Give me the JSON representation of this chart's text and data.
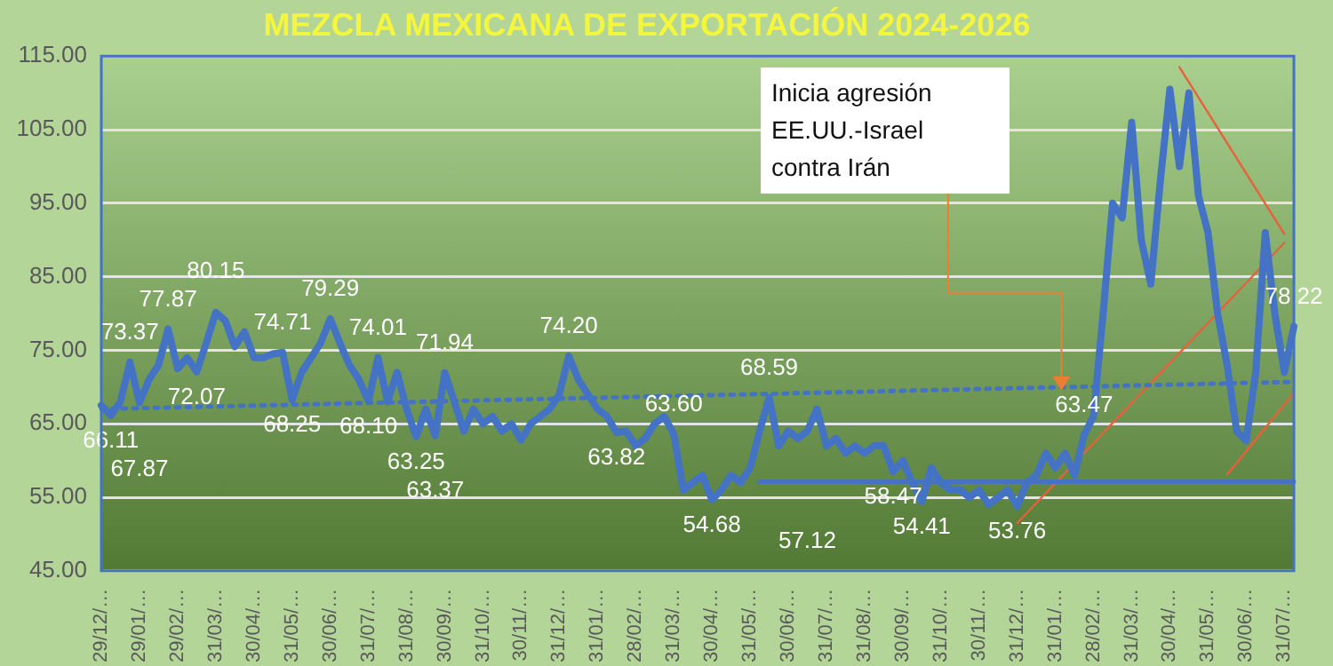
{
  "chart_data": {
    "type": "line",
    "title": "MEZCLA MEXICANA DE EXPORTACIÓN 2024-2026",
    "categories": [
      "29/12/…",
      null,
      null,
      null,
      "29/01/…",
      null,
      null,
      null,
      "29/02/…",
      null,
      null,
      null,
      "31/03/…",
      null,
      null,
      null,
      "30/04/…",
      null,
      null,
      null,
      "31/05/…",
      null,
      null,
      null,
      "30/06/…",
      null,
      null,
      null,
      "31/07/…",
      null,
      null,
      null,
      "31/08/…",
      null,
      null,
      null,
      "30/09/…",
      null,
      null,
      null,
      "31/10/…",
      null,
      null,
      null,
      "30/11/…",
      null,
      null,
      null,
      "31/12/…",
      null,
      null,
      null,
      "31/01/…",
      null,
      null,
      null,
      "28/02/…",
      null,
      null,
      null,
      "31/03/…",
      null,
      null,
      null,
      "30/04/…",
      null,
      null,
      null,
      "31/05/…",
      null,
      null,
      null,
      "30/06/…",
      null,
      null,
      null,
      "31/07/…",
      null,
      null,
      null,
      "31/08/…",
      null,
      null,
      null,
      "30/09/…",
      null,
      null,
      null,
      "31/10/…",
      null,
      null,
      null,
      "30/11/…",
      null,
      null,
      null,
      "31/12/…",
      null,
      null,
      null,
      "31/01/…",
      null,
      null,
      null,
      "28/02/…",
      null,
      null,
      null,
      "31/03/…",
      null,
      null,
      null,
      "30/04/…",
      null,
      null,
      null,
      "31/05/…",
      null,
      null,
      null,
      "30/06/…",
      null,
      null,
      null,
      "31/07/…",
      null
    ],
    "series": [
      {
        "color": "#4472c4",
        "values": [
          67.5,
          66.11,
          68,
          73.37,
          67.87,
          71,
          73,
          77.87,
          72.5,
          74,
          72.07,
          76,
          80.15,
          79,
          75.5,
          77.5,
          74,
          74,
          74.5,
          74.71,
          68.25,
          72,
          74,
          76,
          79.29,
          76,
          73,
          71,
          68.1,
          74.01,
          68,
          72,
          67,
          63.25,
          67,
          63.37,
          71.94,
          68,
          64,
          67,
          65,
          66,
          64,
          65,
          62.8,
          65,
          66,
          67,
          69,
          74.2,
          71,
          69,
          67,
          66,
          63.82,
          64,
          62,
          63,
          65,
          66,
          63.6,
          56,
          57,
          58,
          54.68,
          56,
          58,
          57,
          59,
          64,
          68.59,
          62,
          64,
          63,
          64,
          67,
          62,
          63,
          61,
          62,
          61,
          62,
          62,
          58.47,
          60,
          57,
          54.41,
          59,
          57,
          56,
          56,
          55,
          56,
          54,
          55,
          56,
          53.76,
          57,
          58,
          61,
          59,
          61,
          58,
          63.47,
          66,
          80,
          95,
          93,
          106,
          90,
          84,
          98,
          110.5,
          100,
          110,
          96,
          91,
          80,
          73,
          64,
          62.7,
          72,
          91,
          80,
          72,
          78.22
        ],
        "value_labels": [
          null,
          "66.11",
          null,
          "73.37",
          "67.87",
          null,
          null,
          "77.87",
          null,
          null,
          "72.07",
          null,
          "80.15",
          null,
          null,
          null,
          null,
          null,
          null,
          "74.71",
          "68.25",
          null,
          null,
          null,
          "79.29",
          null,
          null,
          null,
          "68.10",
          "74.01",
          null,
          null,
          null,
          "63.25",
          null,
          "63.37",
          "71.94",
          null,
          null,
          null,
          null,
          null,
          null,
          null,
          null,
          null,
          null,
          null,
          null,
          "74.20",
          null,
          null,
          null,
          null,
          "63.82",
          null,
          null,
          null,
          null,
          null,
          "63.60",
          null,
          null,
          null,
          "54.68",
          null,
          null,
          null,
          null,
          null,
          "68.59",
          null,
          null,
          null,
          null,
          null,
          null,
          null,
          null,
          null,
          null,
          null,
          null,
          "58.47",
          null,
          null,
          "54.41",
          null,
          null,
          null,
          null,
          null,
          null,
          null,
          null,
          null,
          "53.76",
          null,
          null,
          null,
          null,
          null,
          null,
          "63.47",
          null,
          null,
          null,
          null,
          null,
          null,
          null,
          null,
          null,
          null,
          null,
          null,
          null,
          null,
          null,
          null,
          null,
          null,
          null,
          null,
          null,
          "78.22"
        ]
      },
      {
        "color": "#4472c4",
        "line_style": "dotted",
        "values": [
          67,
          null,
          null,
          null,
          null,
          null,
          null,
          null,
          null,
          null,
          null,
          null,
          null,
          null,
          null,
          null,
          null,
          null,
          null,
          null,
          null,
          null,
          null,
          null,
          null,
          null,
          null,
          null,
          null,
          null,
          null,
          null,
          null,
          null,
          null,
          null,
          null,
          null,
          null,
          null,
          null,
          null,
          null,
          null,
          null,
          null,
          null,
          null,
          null,
          null,
          null,
          null,
          null,
          null,
          null,
          null,
          null,
          null,
          null,
          null,
          null,
          null,
          null,
          null,
          null,
          null,
          null,
          null,
          null,
          null,
          null,
          null,
          null,
          null,
          null,
          null,
          null,
          null,
          null,
          null,
          null,
          null,
          null,
          null,
          null,
          null,
          null,
          null,
          null,
          null,
          null,
          null,
          null,
          null,
          null,
          null,
          null,
          null,
          null,
          null,
          null,
          null,
          null,
          null,
          null,
          null,
          null,
          null,
          null,
          null,
          null,
          null,
          null,
          null,
          null,
          null,
          null,
          null,
          null,
          null,
          null,
          null,
          null,
          null,
          null,
          70.7
        ]
      },
      {
        "color": "#4472c4",
        "values": [
          null,
          null,
          null,
          null,
          null,
          null,
          null,
          null,
          null,
          null,
          null,
          null,
          null,
          null,
          null,
          null,
          null,
          null,
          null,
          null,
          null,
          null,
          null,
          null,
          null,
          null,
          null,
          null,
          null,
          null,
          null,
          null,
          null,
          null,
          null,
          null,
          null,
          null,
          null,
          null,
          null,
          null,
          null,
          null,
          null,
          null,
          null,
          null,
          null,
          null,
          null,
          null,
          null,
          null,
          null,
          null,
          null,
          null,
          null,
          null,
          null,
          null,
          null,
          null,
          null,
          null,
          null,
          null,
          null,
          57.12,
          null,
          null,
          null,
          null,
          null,
          null,
          null,
          null,
          null,
          null,
          null,
          null,
          null,
          null,
          null,
          null,
          null,
          null,
          null,
          null,
          null,
          null,
          null,
          null,
          null,
          null,
          null,
          null,
          null,
          null,
          null,
          null,
          null,
          null,
          null,
          null,
          null,
          null,
          null,
          null,
          null,
          null,
          null,
          null,
          null,
          null,
          null,
          null,
          null,
          null,
          null,
          null,
          null,
          null,
          null,
          57.12
        ],
        "value_labels": [
          null,
          null,
          null,
          null,
          null,
          null,
          null,
          null,
          null,
          null,
          null,
          null,
          null,
          null,
          null,
          null,
          null,
          null,
          null,
          null,
          null,
          null,
          null,
          null,
          null,
          null,
          null,
          null,
          null,
          null,
          null,
          null,
          null,
          null,
          null,
          null,
          null,
          null,
          null,
          null,
          null,
          null,
          null,
          null,
          null,
          null,
          null,
          null,
          null,
          null,
          null,
          null,
          null,
          null,
          null,
          null,
          null,
          null,
          null,
          null,
          null,
          null,
          null,
          null,
          null,
          null,
          null,
          null,
          null,
          null,
          null,
          null,
          null,
          null,
          "57.12",
          null,
          null,
          null,
          null,
          null,
          null,
          null,
          null,
          null,
          null,
          null,
          null,
          null,
          null,
          null,
          null,
          null,
          null,
          null,
          null,
          null,
          null,
          null,
          null,
          null,
          null,
          null,
          null,
          null,
          null,
          null,
          null,
          null,
          null,
          null,
          null,
          null,
          null,
          null,
          null,
          null,
          null,
          null,
          null,
          null,
          null,
          null,
          null,
          null,
          null,
          null
        ]
      },
      {
        "color": "#e8603c",
        "values": [
          null,
          null,
          null,
          null,
          null,
          null,
          null,
          null,
          null,
          null,
          null,
          null,
          null,
          null,
          null,
          null,
          null,
          null,
          null,
          null,
          null,
          null,
          null,
          null,
          null,
          null,
          null,
          null,
          null,
          null,
          null,
          null,
          null,
          null,
          null,
          null,
          null,
          null,
          null,
          null,
          null,
          null,
          null,
          null,
          null,
          null,
          null,
          null,
          null,
          null,
          null,
          null,
          null,
          null,
          null,
          null,
          null,
          null,
          null,
          null,
          null,
          null,
          null,
          null,
          null,
          null,
          null,
          null,
          null,
          null,
          null,
          null,
          null,
          null,
          null,
          null,
          null,
          null,
          null,
          null,
          null,
          null,
          null,
          null,
          null,
          null,
          null,
          null,
          null,
          null,
          null,
          null,
          null,
          null,
          null,
          null,
          51.5,
          null,
          null,
          null,
          null,
          null,
          null,
          null,
          null,
          null,
          null,
          null,
          null,
          null,
          null,
          null,
          null,
          null,
          null,
          null,
          null,
          null,
          null,
          null,
          null,
          null,
          null,
          null,
          89.6,
          null
        ]
      },
      {
        "color": "#e8603c",
        "values": [
          null,
          null,
          null,
          null,
          null,
          null,
          null,
          null,
          null,
          null,
          null,
          null,
          null,
          null,
          null,
          null,
          null,
          null,
          null,
          null,
          null,
          null,
          null,
          null,
          null,
          null,
          null,
          null,
          null,
          null,
          null,
          null,
          null,
          null,
          null,
          null,
          null,
          null,
          null,
          null,
          null,
          null,
          null,
          null,
          null,
          null,
          null,
          null,
          null,
          null,
          null,
          null,
          null,
          null,
          null,
          null,
          null,
          null,
          null,
          null,
          null,
          null,
          null,
          null,
          null,
          null,
          null,
          null,
          null,
          null,
          null,
          null,
          null,
          null,
          null,
          null,
          null,
          null,
          null,
          null,
          null,
          null,
          null,
          null,
          null,
          null,
          null,
          null,
          null,
          null,
          null,
          null,
          null,
          null,
          null,
          null,
          null,
          null,
          null,
          null,
          null,
          null,
          null,
          null,
          null,
          null,
          null,
          null,
          null,
          null,
          null,
          null,
          null,
          null,
          null,
          null,
          null,
          null,
          58.1,
          null,
          null,
          null,
          null,
          null,
          null,
          69.2
        ]
      },
      {
        "color": "#e8603c",
        "values": [
          null,
          null,
          null,
          null,
          null,
          null,
          null,
          null,
          null,
          null,
          null,
          null,
          null,
          null,
          null,
          null,
          null,
          null,
          null,
          null,
          null,
          null,
          null,
          null,
          null,
          null,
          null,
          null,
          null,
          null,
          null,
          null,
          null,
          null,
          null,
          null,
          null,
          null,
          null,
          null,
          null,
          null,
          null,
          null,
          null,
          null,
          null,
          null,
          null,
          null,
          null,
          null,
          null,
          null,
          null,
          null,
          null,
          null,
          null,
          null,
          null,
          null,
          null,
          null,
          null,
          null,
          null,
          null,
          null,
          null,
          null,
          null,
          null,
          null,
          null,
          null,
          null,
          null,
          null,
          null,
          null,
          null,
          null,
          null,
          null,
          null,
          null,
          null,
          null,
          null,
          null,
          null,
          null,
          null,
          null,
          null,
          null,
          null,
          null,
          null,
          null,
          null,
          null,
          null,
          null,
          null,
          null,
          null,
          null,
          null,
          null,
          null,
          null,
          113.5,
          null,
          null,
          null,
          null,
          null,
          null,
          null,
          null,
          null,
          null,
          90.8,
          null
        ]
      }
    ],
    "ylim": [
      45,
      115
    ],
    "yticks": [
      {
        "value": 45,
        "label": "45.00"
      },
      {
        "value": 55,
        "label": "55.00"
      },
      {
        "value": 65,
        "label": "65.00"
      },
      {
        "value": 75,
        "label": "75.00"
      },
      {
        "value": 85,
        "label": "85.00"
      },
      {
        "value": 95,
        "label": "95.00"
      },
      {
        "value": 105,
        "label": "105.00"
      },
      {
        "value": 115,
        "label": "115.00"
      }
    ],
    "grid": "y",
    "legend": false,
    "marker": "none",
    "annotations": [
      "Inicia agresión\nEE.UU.-Israel\ncontra Irán"
    ]
  }
}
